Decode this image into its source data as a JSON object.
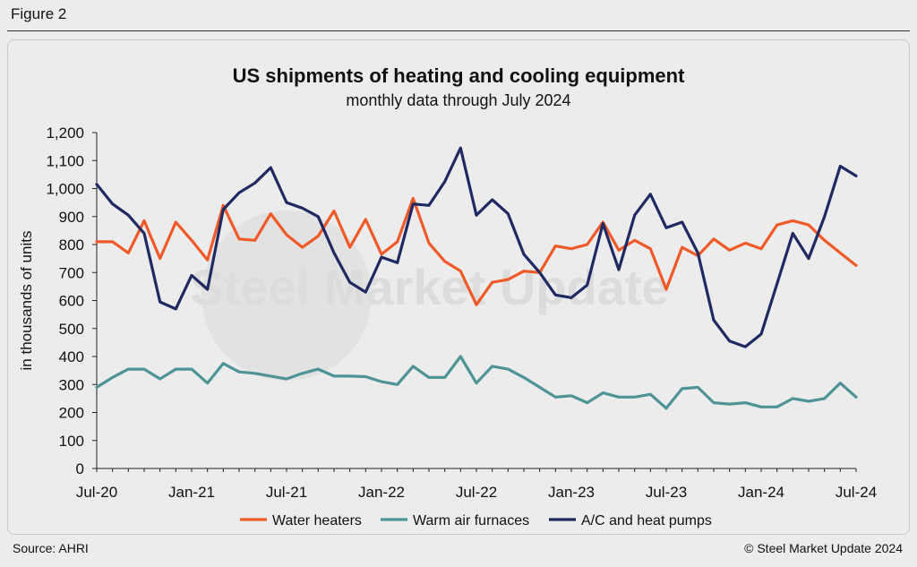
{
  "figure_label": "Figure 2",
  "footer": {
    "source": "Source: AHRI",
    "copyright": "© Steel Market Update 2024"
  },
  "watermark": "Steel Market Update",
  "colors": {
    "water_heaters": "#f05a28",
    "warm_air_furnaces": "#4e9497",
    "ac_heat_pumps": "#1f2a63",
    "axis": "#222222"
  },
  "chart_data": {
    "type": "line",
    "title": "US shipments of heating and cooling equipment",
    "subtitle": "monthly data through July 2024",
    "ylabel": "in thousands of units",
    "xlabel": "",
    "ylim": [
      0,
      1200
    ],
    "yticks": [
      0,
      100,
      200,
      300,
      400,
      500,
      600,
      700,
      800,
      900,
      1000,
      1100,
      1200
    ],
    "ytick_labels": [
      "0",
      "100",
      "200",
      "300",
      "400",
      "500",
      "600",
      "700",
      "800",
      "900",
      "1,000",
      "1,100",
      "1,200"
    ],
    "xtick_labels": [
      {
        "index": 0,
        "label": "Jul-20"
      },
      {
        "index": 6,
        "label": "Jan-21"
      },
      {
        "index": 12,
        "label": "Jul-21"
      },
      {
        "index": 18,
        "label": "Jan-22"
      },
      {
        "index": 24,
        "label": "Jul-22"
      },
      {
        "index": 30,
        "label": "Jan-23"
      },
      {
        "index": 36,
        "label": "Jul-23"
      },
      {
        "index": 42,
        "label": "Jan-24"
      },
      {
        "index": 48,
        "label": "Jul-24"
      }
    ],
    "categories": [
      "Jul-20",
      "Aug-20",
      "Sep-20",
      "Oct-20",
      "Nov-20",
      "Dec-20",
      "Jan-21",
      "Feb-21",
      "Mar-21",
      "Apr-21",
      "May-21",
      "Jun-21",
      "Jul-21",
      "Aug-21",
      "Sep-21",
      "Oct-21",
      "Nov-21",
      "Dec-21",
      "Jan-22",
      "Feb-22",
      "Mar-22",
      "Apr-22",
      "May-22",
      "Jun-22",
      "Jul-22",
      "Aug-22",
      "Sep-22",
      "Oct-22",
      "Nov-22",
      "Dec-22",
      "Jan-23",
      "Feb-23",
      "Mar-23",
      "Apr-23",
      "May-23",
      "Jun-23",
      "Jul-23",
      "Aug-23",
      "Sep-23",
      "Oct-23",
      "Nov-23",
      "Dec-23",
      "Jan-24",
      "Feb-24",
      "Mar-24",
      "Apr-24",
      "May-24",
      "Jun-24",
      "Jul-24"
    ],
    "legend_position": "bottom",
    "series": [
      {
        "name": "Water heaters",
        "color_key": "water_heaters",
        "values": [
          810,
          810,
          770,
          885,
          750,
          880,
          815,
          745,
          940,
          820,
          815,
          910,
          835,
          790,
          830,
          920,
          790,
          890,
          765,
          810,
          965,
          805,
          740,
          705,
          585,
          665,
          675,
          705,
          700,
          795,
          785,
          800,
          880,
          780,
          815,
          785,
          640,
          790,
          760,
          820,
          780,
          805,
          785,
          870,
          885,
          870,
          815,
          770,
          725
        ]
      },
      {
        "name": "Warm air furnaces",
        "color_key": "warm_air_furnaces",
        "values": [
          290,
          325,
          355,
          355,
          320,
          355,
          355,
          305,
          375,
          345,
          340,
          330,
          320,
          340,
          355,
          330,
          330,
          328,
          310,
          300,
          365,
          325,
          325,
          400,
          305,
          365,
          355,
          325,
          290,
          255,
          260,
          235,
          270,
          255,
          255,
          265,
          215,
          285,
          290,
          235,
          230,
          235,
          220,
          220,
          250,
          240,
          250,
          305,
          255
        ]
      },
      {
        "name": "A/C and heat pumps",
        "color_key": "ac_heat_pumps",
        "values": [
          1015,
          945,
          905,
          840,
          595,
          570,
          690,
          640,
          925,
          985,
          1020,
          1075,
          950,
          930,
          900,
          770,
          665,
          630,
          755,
          735,
          945,
          940,
          1025,
          1145,
          905,
          960,
          910,
          765,
          700,
          620,
          610,
          655,
          875,
          710,
          905,
          980,
          860,
          880,
          770,
          530,
          455,
          435,
          480,
          660,
          840,
          750,
          900,
          1080,
          1045
        ]
      }
    ]
  }
}
